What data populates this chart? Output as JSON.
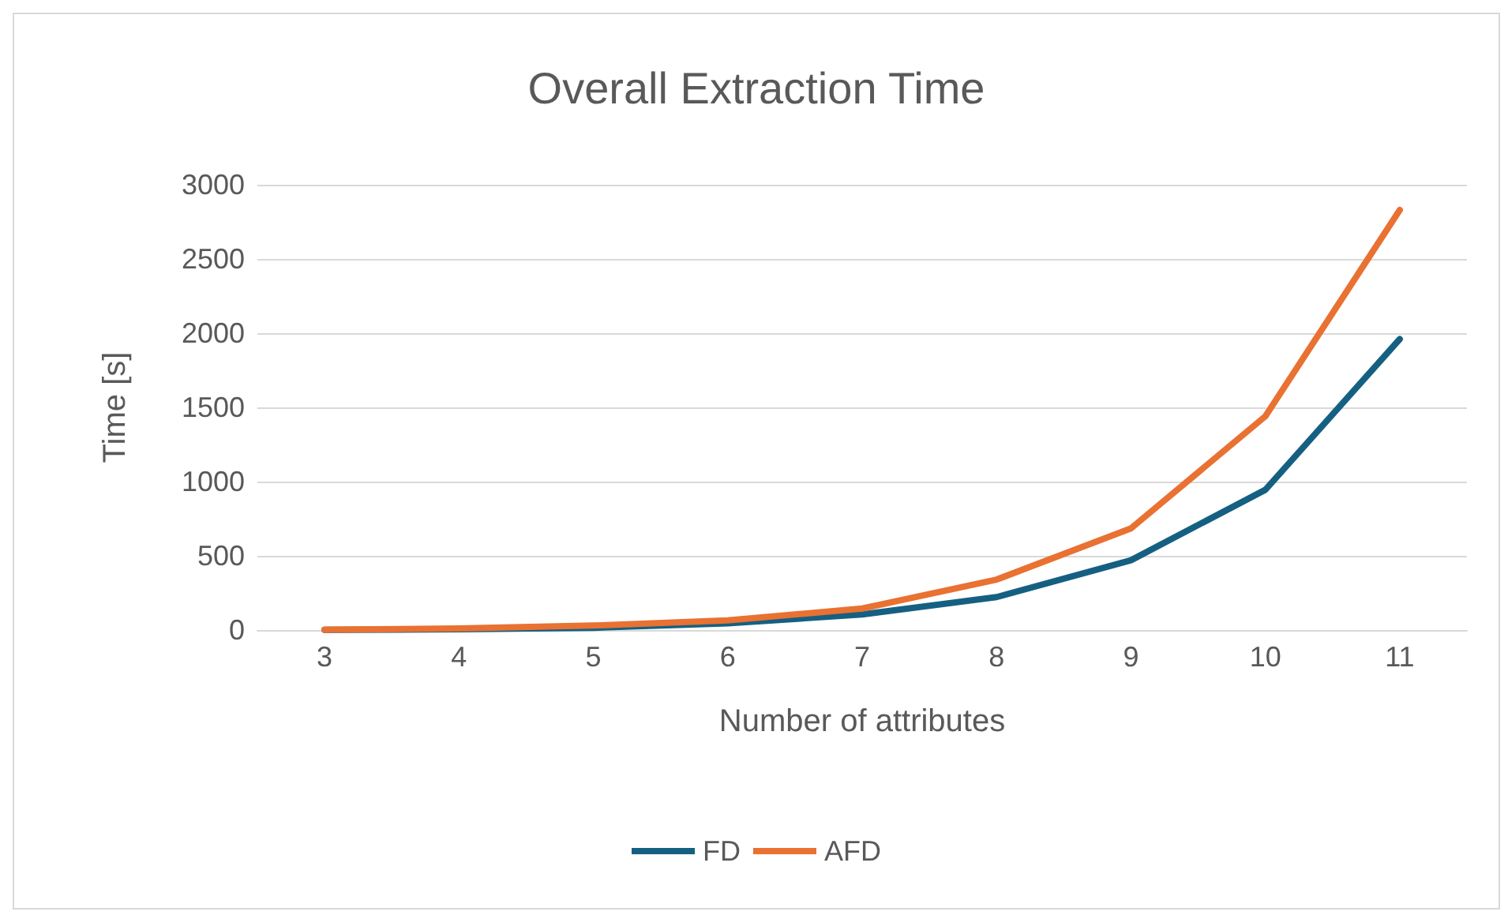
{
  "chart_data": {
    "type": "line",
    "title": "Overall Extraction Time",
    "xlabel": "Number of attributes",
    "ylabel": "Time [s]",
    "categories": [
      "3",
      "4",
      "5",
      "6",
      "7",
      "8",
      "9",
      "10",
      "11"
    ],
    "series": [
      {
        "name": "FD",
        "color": "#156082",
        "values": [
          1,
          5,
          15,
          45,
          105,
          222,
          470,
          945,
          1960
        ]
      },
      {
        "name": "AFD",
        "color": "#e97132",
        "values": [
          2,
          10,
          30,
          65,
          145,
          340,
          685,
          1440,
          2830
        ]
      }
    ],
    "ylim": [
      0,
      3000
    ],
    "yticks": [
      0,
      500,
      1000,
      1500,
      2000,
      2500,
      3000
    ],
    "grid": "y",
    "legend": "bottom",
    "marker": "none",
    "line_style": "solid"
  }
}
